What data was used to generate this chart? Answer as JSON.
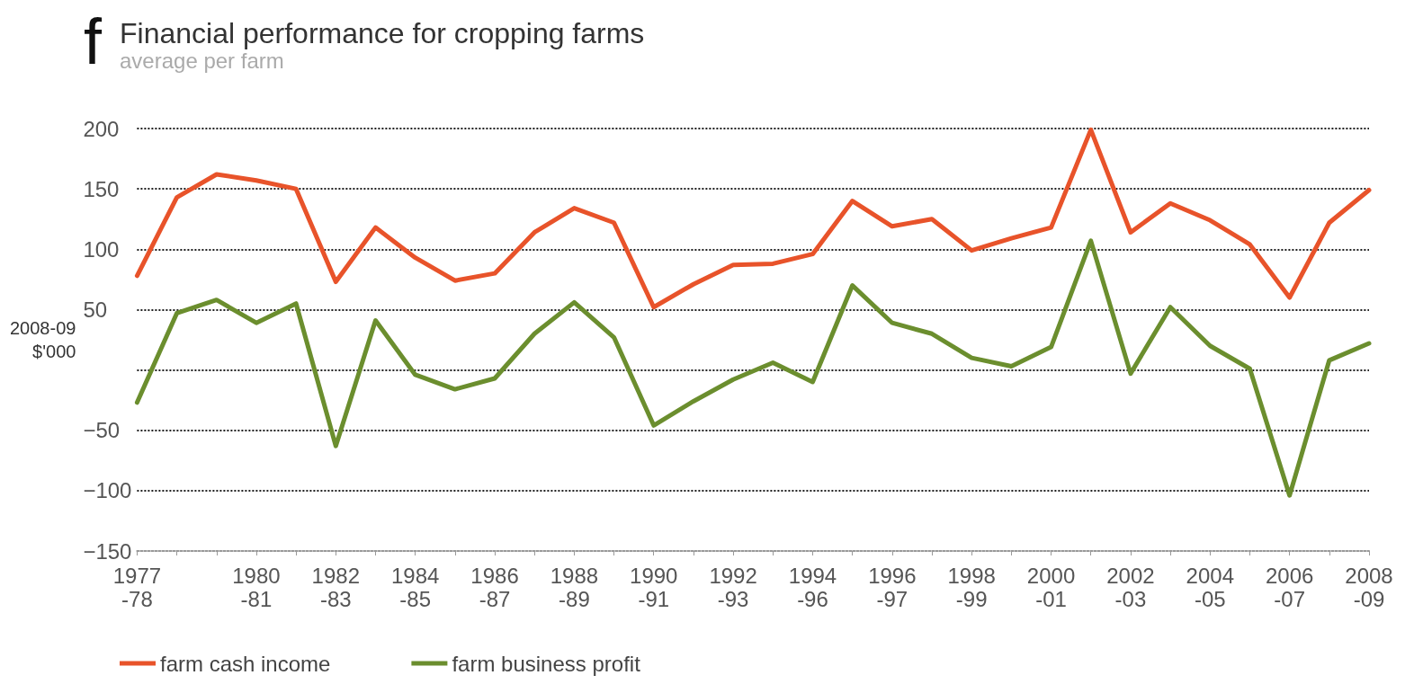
{
  "chart_data": {
    "type": "line",
    "title": "Financial performance for cropping farms",
    "subtitle": "average per farm",
    "ylabel": "2008-09\n$'000",
    "annotations": [
      "f"
    ],
    "categories": [
      "1977-78",
      null,
      null,
      "1980-81",
      null,
      "1982-83",
      null,
      "1984-85",
      null,
      "1986-87",
      null,
      "1988-89",
      null,
      "1990-91",
      null,
      "1992-93",
      null,
      "1994-96",
      null,
      "1996-97",
      null,
      "1998-99",
      null,
      "2000-01",
      null,
      "2002-03",
      null,
      "2004-05",
      null,
      "2006-07",
      null,
      "2008-09"
    ],
    "series": [
      {
        "name": "farm cash income",
        "color": "#e8532a",
        "values": [
          78,
          143,
          162,
          157,
          150,
          73,
          118,
          93,
          74,
          80,
          114,
          134,
          122,
          52,
          71,
          87,
          88,
          96,
          140,
          119,
          125,
          99,
          109,
          118,
          199,
          114,
          138,
          124,
          104,
          60,
          122,
          149
        ]
      },
      {
        "name": "farm business profit",
        "color": "#6b8e2e",
        "values": [
          -27,
          47,
          58,
          39,
          55,
          -63,
          41,
          -4,
          -16,
          -7,
          30,
          56,
          27,
          -46,
          -26,
          -8,
          6,
          -10,
          70,
          39,
          30,
          10,
          3,
          19,
          107,
          -3,
          52,
          20,
          1,
          -104,
          8,
          22
        ]
      }
    ],
    "ylim": [
      -150,
      200
    ],
    "yticks": [
      -150,
      -100,
      -50,
      {
        "value": 0,
        "label": null
      },
      50,
      100,
      150,
      200
    ],
    "grid": "y",
    "legend": "bottom left",
    "marker": "none",
    "line_style": "solid"
  }
}
